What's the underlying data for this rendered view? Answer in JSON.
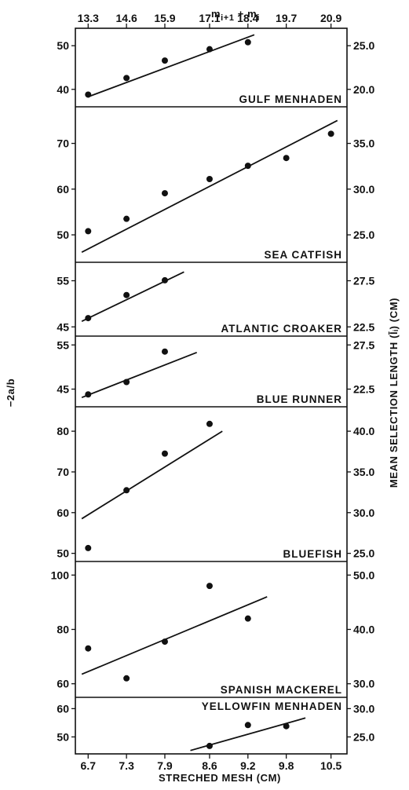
{
  "chart_data": {
    "type": "scatter",
    "x_axis": {
      "label": "STRECHED MESH (CM)",
      "tick_values": [
        6.7,
        7.3,
        7.9,
        8.6,
        9.2,
        9.8,
        10.5
      ],
      "tick_labels": [
        "6.7",
        "7.3",
        "7.9",
        "8.6",
        "9.2",
        "9.8",
        "10.5"
      ]
    },
    "top_axis": {
      "label": "m_{i+1} + m_i",
      "tick_labels": [
        "13.3",
        "14.6",
        "15.9",
        "17.1",
        "18.4",
        "19.7",
        "20.9"
      ]
    },
    "left_axis_label": "−2a/b",
    "right_axis_label": "MEAN SELECTION LENGTH (l̄ᵢ) (CM)",
    "panels": [
      {
        "name": "GULF MENHADEN",
        "ylim": [
          36,
          54
        ],
        "left_ticks": [
          "40",
          "50"
        ],
        "right_ticks": [
          "20.0",
          "25.0"
        ],
        "points": [
          [
            6.7,
            38.8
          ],
          [
            7.3,
            42.6
          ],
          [
            7.9,
            46.6
          ],
          [
            8.6,
            49.2
          ],
          [
            9.2,
            50.8
          ]
        ],
        "fit_line": [
          [
            6.7,
            38.3
          ],
          [
            9.3,
            52.5
          ]
        ]
      },
      {
        "name": "SEA CATFISH",
        "ylim": [
          44,
          78
        ],
        "left_ticks": [
          "50",
          "60",
          "70"
        ],
        "right_ticks": [
          "25.0",
          "30.0",
          "35.0"
        ],
        "points": [
          [
            6.7,
            50.8
          ],
          [
            7.3,
            53.5
          ],
          [
            7.9,
            59.1
          ],
          [
            8.6,
            62.2
          ],
          [
            9.2,
            65.1
          ],
          [
            9.8,
            66.8
          ],
          [
            10.5,
            72.1
          ]
        ],
        "fit_line": [
          [
            6.6,
            46.2
          ],
          [
            10.6,
            75.0
          ]
        ]
      },
      {
        "name": "ATLANTIC CROAKER",
        "ylim": [
          43,
          59
        ],
        "left_ticks": [
          "45",
          "55"
        ],
        "right_ticks": [
          "22.5",
          "27.5"
        ],
        "points": [
          [
            6.7,
            46.9
          ],
          [
            7.3,
            51.9
          ],
          [
            7.9,
            55.1
          ]
        ],
        "fit_line": [
          [
            6.6,
            46.2
          ],
          [
            8.2,
            56.9
          ]
        ]
      },
      {
        "name": "BLUE RUNNER",
        "ylim": [
          41,
          57
        ],
        "left_ticks": [
          "45",
          "55"
        ],
        "right_ticks": [
          "22.5",
          "27.5"
        ],
        "points": [
          [
            6.7,
            43.8
          ],
          [
            7.3,
            46.6
          ],
          [
            7.9,
            53.5
          ]
        ],
        "fit_line": [
          [
            6.6,
            43.1
          ],
          [
            8.4,
            53.3
          ]
        ]
      },
      {
        "name": "BLUEFISH",
        "ylim": [
          48,
          86
        ],
        "left_ticks": [
          "50",
          "60",
          "70",
          "80"
        ],
        "right_ticks": [
          "25.0",
          "30.0",
          "35.0",
          "40.0"
        ],
        "points": [
          [
            6.7,
            51.3
          ],
          [
            7.3,
            65.5
          ],
          [
            7.9,
            74.5
          ],
          [
            8.6,
            81.8
          ]
        ],
        "fit_line": [
          [
            6.6,
            58.5
          ],
          [
            8.8,
            80.0
          ]
        ]
      },
      {
        "name": "SPANISH MACKEREL",
        "ylim": [
          55,
          105
        ],
        "left_ticks": [
          "60",
          "80",
          "100"
        ],
        "right_ticks": [
          "30.0",
          "40.0",
          "50.0"
        ],
        "points": [
          [
            6.7,
            73
          ],
          [
            7.3,
            62
          ],
          [
            7.9,
            75.5
          ],
          [
            8.6,
            96
          ],
          [
            9.2,
            84
          ]
        ],
        "fit_line": [
          [
            6.6,
            63.5
          ],
          [
            9.5,
            92
          ]
        ]
      },
      {
        "name": "YELLOWFIN MENHADEN",
        "ylim": [
          44,
          64
        ],
        "left_ticks": [
          "50",
          "60"
        ],
        "right_ticks": [
          "25.0",
          "30.0"
        ],
        "points": [
          [
            8.6,
            46.8
          ],
          [
            9.2,
            54.2
          ],
          [
            9.8,
            53.8
          ]
        ],
        "fit_line": [
          [
            8.3,
            45.2
          ],
          [
            10.1,
            56.7
          ]
        ]
      }
    ]
  }
}
